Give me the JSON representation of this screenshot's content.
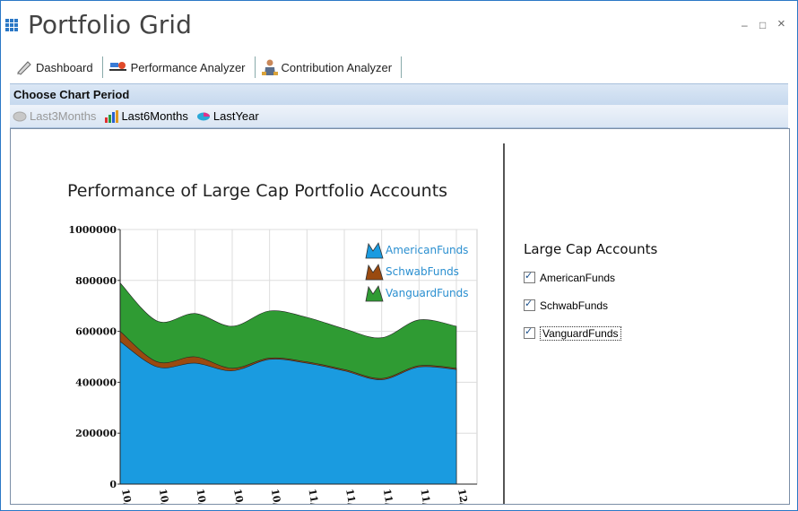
{
  "window": {
    "title": "Portfolio Grid",
    "minimize": "–",
    "maximize": "□",
    "close": "×"
  },
  "tabs": [
    {
      "label": "Dashboard",
      "icon": "pencil-icon"
    },
    {
      "label": "Performance Analyzer",
      "icon": "analyzer-icon"
    },
    {
      "label": "Contribution Analyzer",
      "icon": "person-icon"
    }
  ],
  "period": {
    "header": "Choose Chart Period",
    "options": [
      {
        "label": "Last3Months",
        "enabled": false
      },
      {
        "label": "Last6Months",
        "enabled": true
      },
      {
        "label": "LastYear",
        "enabled": true
      }
    ]
  },
  "accounts": {
    "title": "Large Cap Accounts",
    "items": [
      {
        "label": "AmericanFunds",
        "checked": true
      },
      {
        "label": "SchwabFunds",
        "checked": true
      },
      {
        "label": "VanguardFunds",
        "checked": true
      }
    ]
  },
  "chart_data": {
    "type": "area",
    "title": "Performance of Large Cap Portfolio Accounts",
    "ylim": [
      0,
      1000000
    ],
    "yticks": [
      "0",
      "200000",
      "400000",
      "600000",
      "800000",
      "1000000"
    ],
    "xticks": [
      "10/",
      "10/",
      "10/",
      "10/",
      "10/",
      "11/",
      "11/",
      "11/",
      "11/",
      "12/"
    ],
    "grid": true,
    "legend_position": "top-right",
    "stacked": true,
    "x_index": [
      0,
      1,
      2,
      3,
      4,
      5,
      6,
      7,
      8,
      9
    ],
    "series": [
      {
        "name": "AmericanFunds",
        "color": "#1a9be0",
        "values": [
          560000,
          460000,
          475000,
          445000,
          490000,
          475000,
          445000,
          410000,
          460000,
          450000
        ]
      },
      {
        "name": "SchwabFunds",
        "color": "#9a4a10",
        "values": [
          40000,
          20000,
          25000,
          10000,
          5000,
          5000,
          5000,
          5000,
          5000,
          5000
        ]
      },
      {
        "name": "VanguardFunds",
        "color": "#2f9b33",
        "values": [
          190000,
          160000,
          170000,
          165000,
          185000,
          175000,
          160000,
          160000,
          180000,
          165000
        ]
      }
    ],
    "colors": {
      "american": "#1a9be0",
      "schwab": "#9a4a10",
      "vanguard": "#2f9b33"
    }
  }
}
